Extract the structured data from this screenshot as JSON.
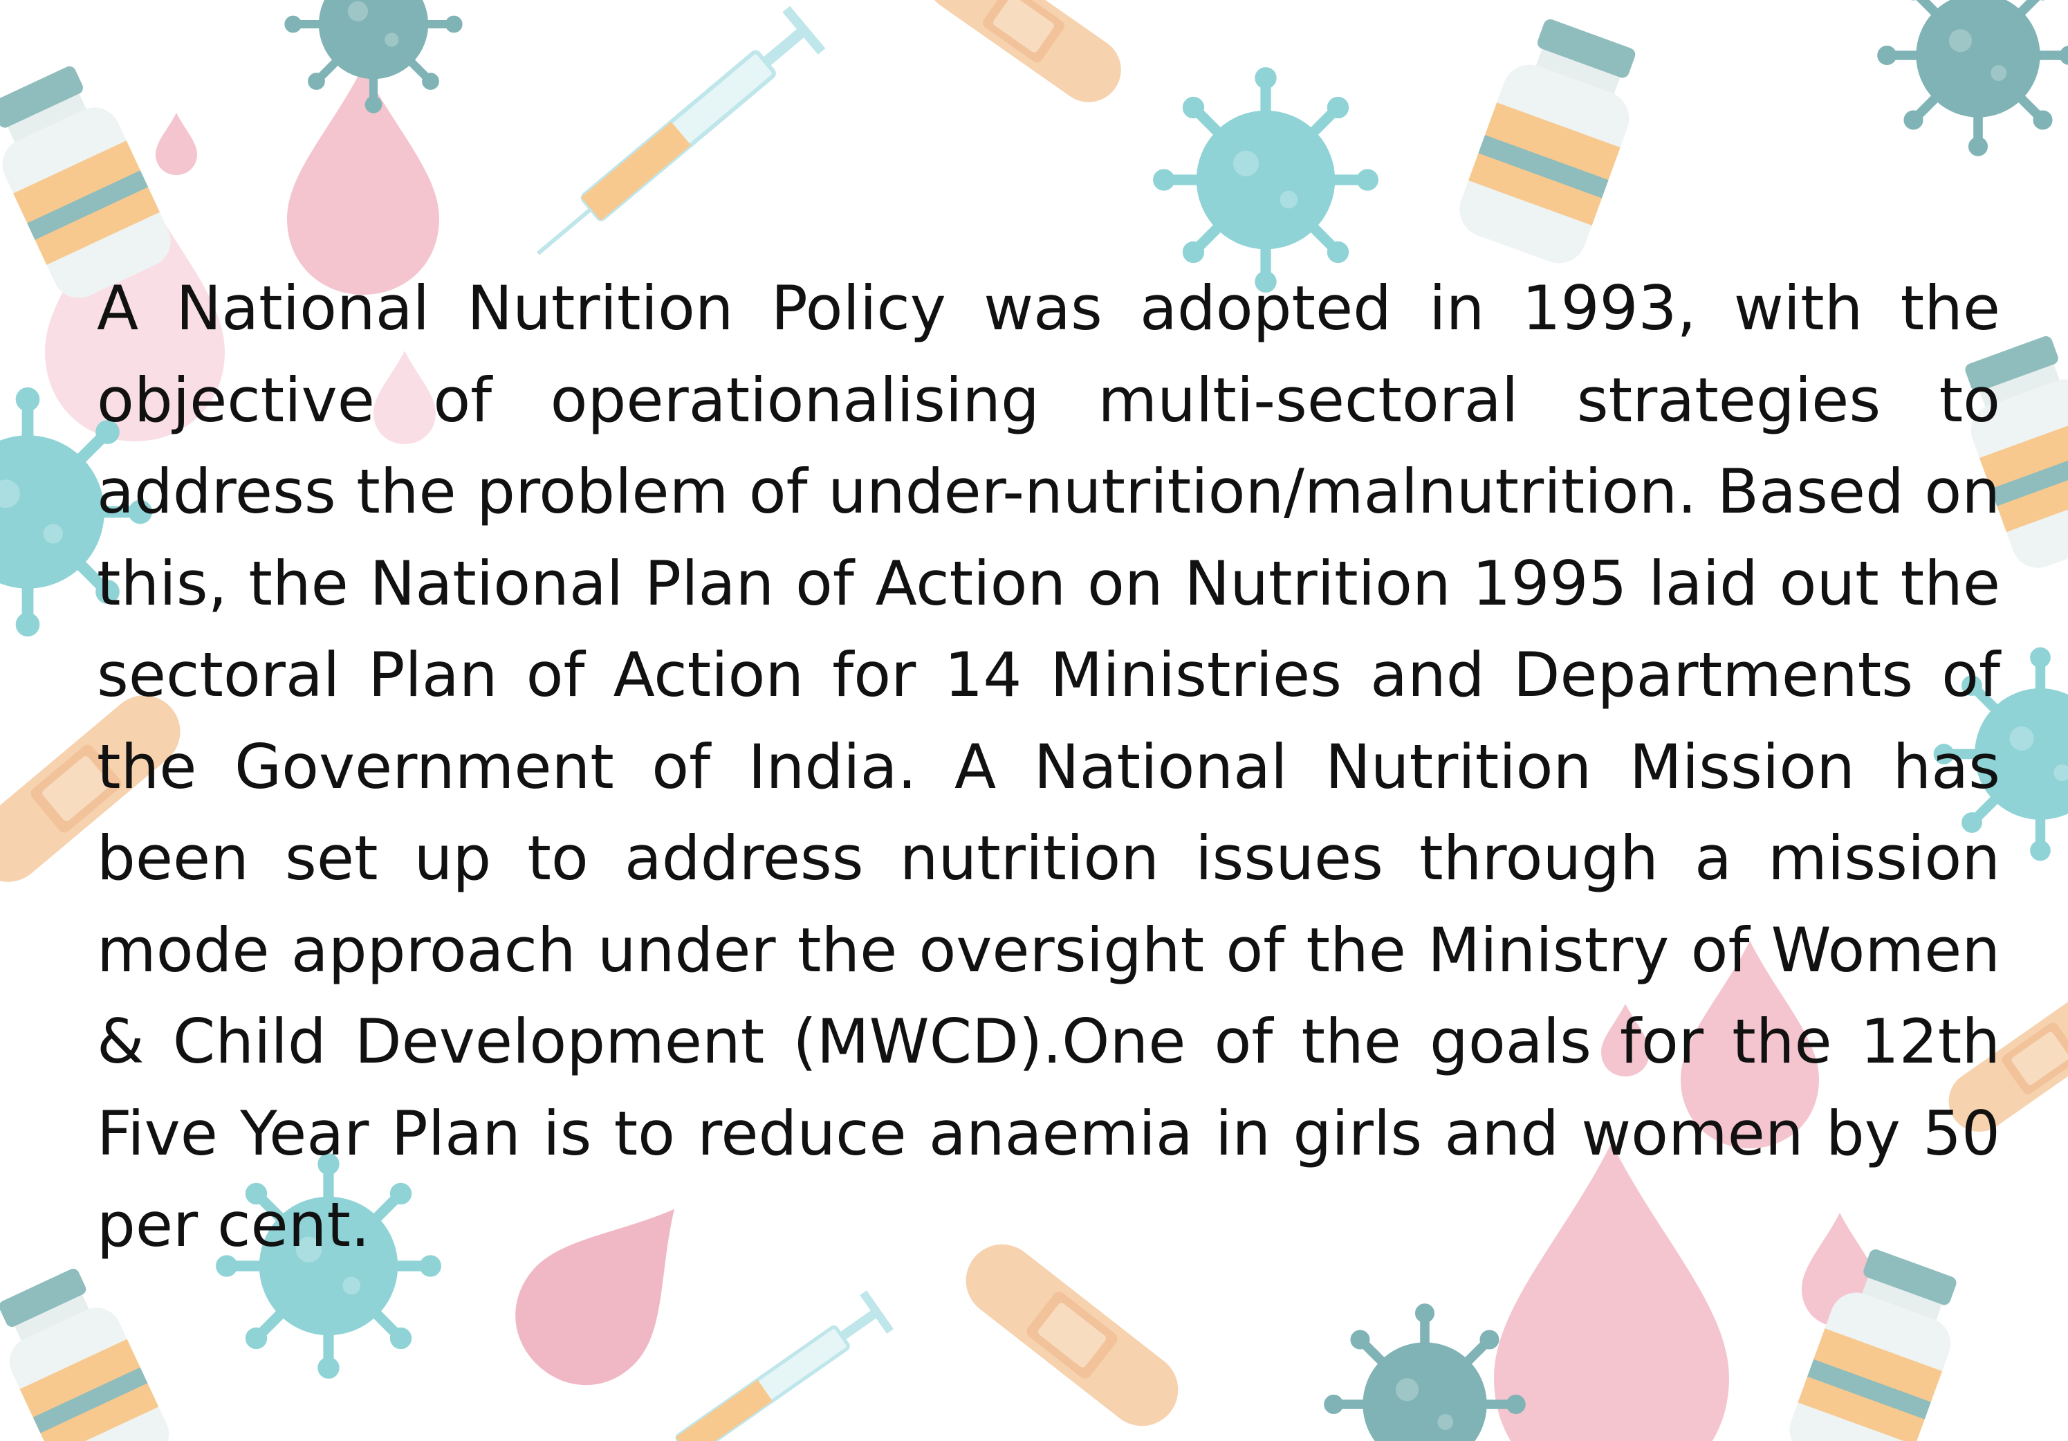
{
  "paragraph": "A National Nutrition Policy was adopted in 1993, with the objective of operationalising multi-sectoral strategies to address the problem of under-nutrition/malnutrition. Based on this, the National Plan of Action on Nutrition 1995 laid out the sectoral Plan of Action for 14 Ministries and Departments of the Government of India. A National Nutrition Mission has been set up to address nutrition issues through a mission mode approach under the oversight of the Ministry of Women & Child Development (MWCD).One of the goals for the 12th Five Year Plan is to reduce anaemia in girls and women by 50 per cent.",
  "colors": {
    "virus": "#8fd3d6",
    "virus_dark": "#7fb3b5",
    "blood_drop": "#f4c5cf",
    "bandage": "#f6d2ae",
    "vial_cap": "#8fbcbc",
    "vial_label": "#f7c98f",
    "syringe": "#bfe6ea",
    "text": "#111111"
  },
  "icons": [
    "virus-icon",
    "blood-drop-icon",
    "bandage-icon",
    "vial-icon",
    "syringe-icon"
  ]
}
